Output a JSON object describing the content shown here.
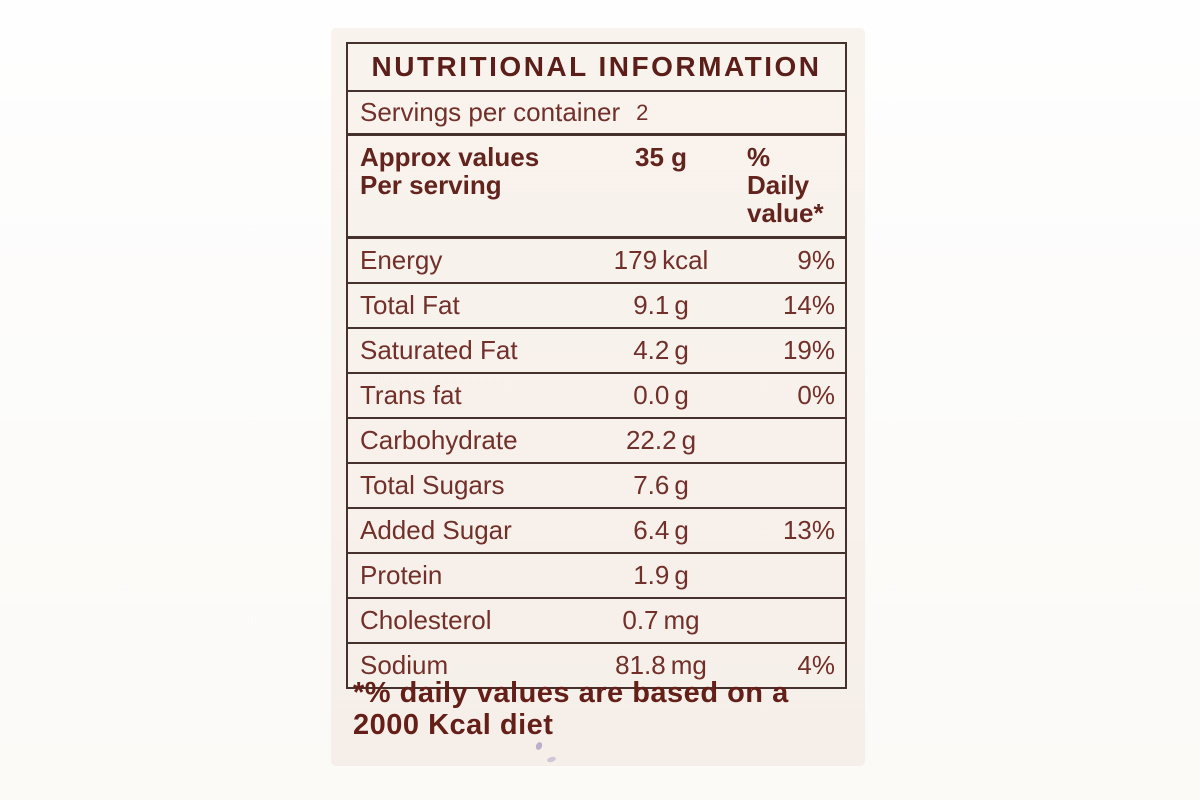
{
  "label": {
    "title": "NUTRITIONAL INFORMATION",
    "servings": {
      "label": "Servings per container",
      "value": "2"
    },
    "header": {
      "col_name_line1": "Approx values",
      "col_name_line2": "Per serving",
      "col_amount": "35 g",
      "col_dv_line1": "% Daily",
      "col_dv_line2": "value*"
    },
    "rows": [
      {
        "name": "Energy",
        "amount": "179",
        "unit": "kcal",
        "dv": "9%"
      },
      {
        "name": "Total Fat",
        "amount": "9.1",
        "unit": "g",
        "dv": "14%"
      },
      {
        "name": "Saturated Fat",
        "amount": "4.2",
        "unit": "g",
        "dv": "19%"
      },
      {
        "name": "Trans fat",
        "amount": "0.0",
        "unit": "g",
        "dv": "0%"
      },
      {
        "name": "Carbohydrate",
        "amount": "22.2",
        "unit": "g",
        "dv": ""
      },
      {
        "name": "Total Sugars",
        "amount": "7.6",
        "unit": "g",
        "dv": ""
      },
      {
        "name": "Added Sugar",
        "amount": "6.4",
        "unit": "g",
        "dv": "13%"
      },
      {
        "name": "Protein",
        "amount": "1.9",
        "unit": "g",
        "dv": ""
      },
      {
        "name": "Cholesterol",
        "amount": "0.7",
        "unit": "mg",
        "dv": ""
      },
      {
        "name": "Sodium",
        "amount": "81.8",
        "unit": "mg",
        "dv": "4%"
      }
    ],
    "footnote": {
      "line1": "*% daily values are based on a",
      "line2": "2000 Kcal diet"
    },
    "colors": {
      "text": "#71302a",
      "title_text": "#5c1e18",
      "border": "#46322d",
      "paper": "#f8f2ec",
      "background": "#fdfdfc"
    }
  }
}
